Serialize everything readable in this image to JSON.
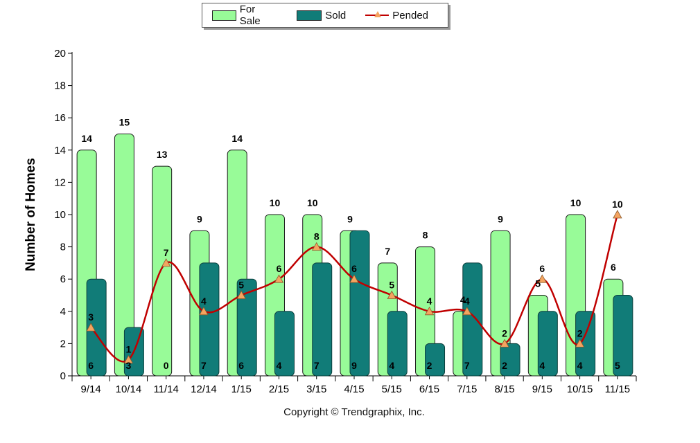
{
  "legend": {
    "for_sale": "For Sale",
    "sold": "Sold",
    "pended": "Pended"
  },
  "copyright": "Copyright © Trendgraphix, Inc.",
  "colors": {
    "for_sale": "#98fb98",
    "sold": "#117c78",
    "pended_line": "#c00000",
    "pended_marker": "#f4a460"
  },
  "chart_data": {
    "type": "bar",
    "ylabel": "Number of Homes",
    "xlabel": "",
    "ylim": [
      0,
      20
    ],
    "yticks": [
      0,
      2,
      4,
      6,
      8,
      10,
      12,
      14,
      16,
      18,
      20
    ],
    "legend_position": "top-center",
    "grid": false,
    "categories": [
      "9/14",
      "10/14",
      "11/14",
      "12/14",
      "1/15",
      "2/15",
      "3/15",
      "4/15",
      "5/15",
      "6/15",
      "7/15",
      "8/15",
      "9/15",
      "10/15",
      "11/15"
    ],
    "series": [
      {
        "name": "For Sale",
        "type": "bar",
        "values": [
          14,
          15,
          13,
          9,
          14,
          10,
          10,
          9,
          7,
          8,
          4,
          9,
          5,
          10,
          6
        ]
      },
      {
        "name": "Sold",
        "type": "bar",
        "values": [
          6,
          3,
          0,
          7,
          6,
          4,
          7,
          9,
          4,
          2,
          7,
          2,
          4,
          4,
          5
        ]
      },
      {
        "name": "Pended",
        "type": "line",
        "values": [
          3,
          1,
          7,
          4,
          5,
          6,
          8,
          6,
          5,
          4,
          4,
          2,
          6,
          2,
          10
        ]
      }
    ]
  }
}
